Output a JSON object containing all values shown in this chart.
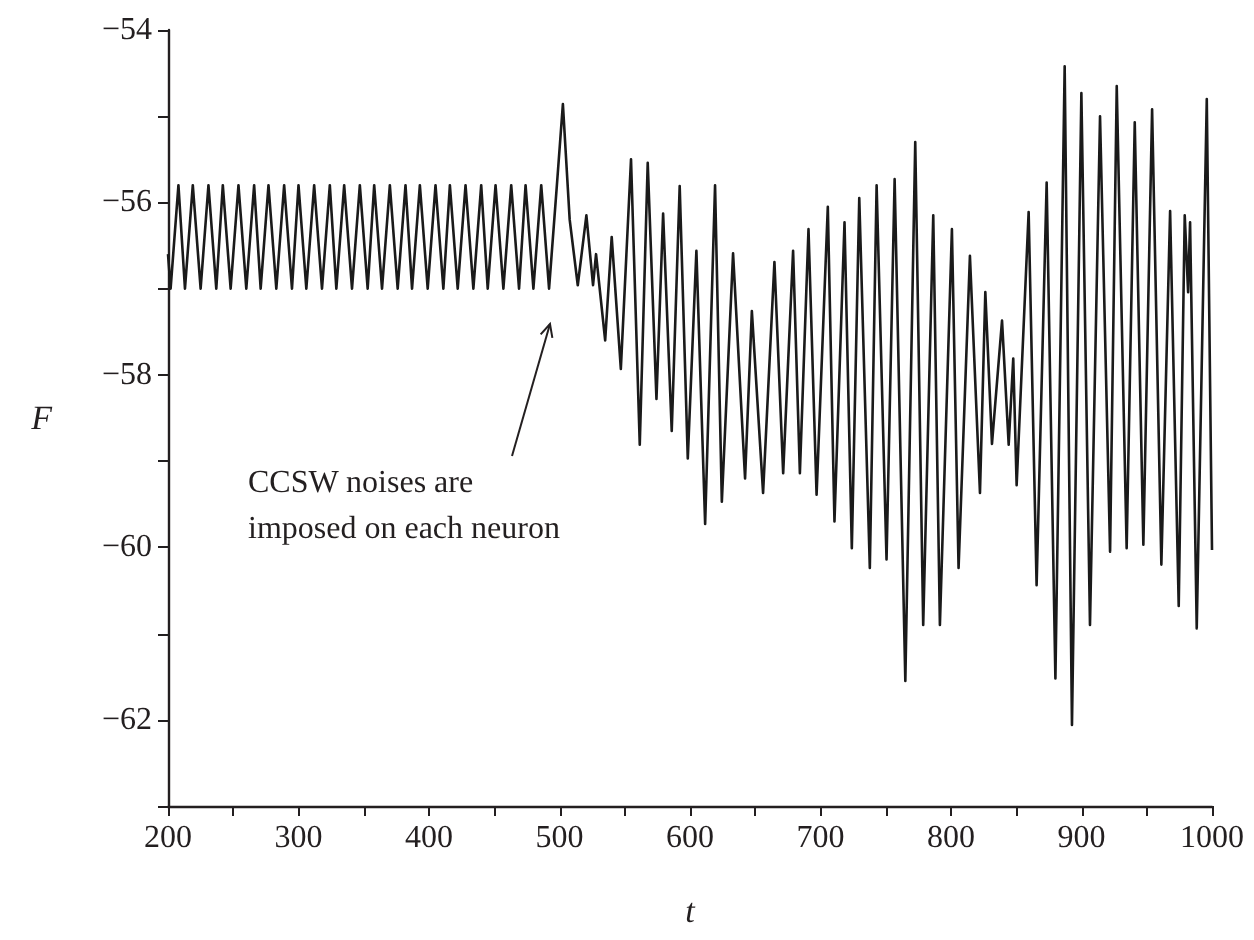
{
  "chart_data": {
    "type": "line",
    "xlabel": "t",
    "ylabel": "F",
    "xlim": [
      200,
      1000
    ],
    "ylim": [
      -63,
      -54
    ],
    "xticks": [
      200,
      {
        "value": 250,
        "label": null
      },
      300,
      {
        "value": 350,
        "label": null
      },
      400,
      {
        "value": 450,
        "label": null
      },
      500,
      {
        "value": 550,
        "label": null
      },
      600,
      {
        "value": 650,
        "label": null
      },
      700,
      {
        "value": 750,
        "label": null
      },
      800,
      {
        "value": 850,
        "label": null
      },
      900,
      {
        "value": 950,
        "label": null
      },
      1000
    ],
    "yticks": [
      {
        "value": -63,
        "label": null
      },
      -62,
      {
        "value": -61,
        "label": null
      },
      -60,
      {
        "value": -59,
        "label": null
      },
      -58,
      {
        "value": -57,
        "label": null
      },
      -56,
      {
        "value": -55,
        "label": null
      },
      -54
    ],
    "grid": false,
    "marker": "none",
    "line_style": "solid",
    "annotations": [
      "CCSW noises are\nimposed on each neuron"
    ],
    "series": [
      {
        "color": "#1a1a1a",
        "x": [
          200,
          202,
          208,
          213,
          219,
          225,
          231,
          237,
          242,
          248,
          254,
          260,
          266,
          271,
          277,
          283,
          289,
          295,
          300,
          306,
          312,
          318,
          324,
          329,
          335,
          341,
          347,
          353,
          358,
          364,
          370,
          376,
          382,
          387,
          393,
          399,
          405,
          411,
          416,
          422,
          428,
          434,
          440,
          445,
          451,
          457,
          463,
          469,
          474,
          480,
          486,
          492,
          498,
          502.6,
          507.8,
          514,
          520.6,
          525.7,
          528,
          535,
          540,
          547,
          554.8,
          561.5,
          567.6,
          574.3,
          579.4,
          586,
          592.1,
          598.3,
          604.9,
          611.6,
          619.2,
          624.4,
          633,
          642.2,
          647.4,
          656,
          664.7,
          671.4,
          679,
          684.2,
          690.8,
          697,
          705.6,
          710.7,
          718.4,
          724,
          729.7,
          737.8,
          743,
          750.6,
          756.8,
          765,
          772.6,
          778.7,
          786.4,
          791.5,
          800.7,
          805.8,
          814.5,
          822.2,
          826.3,
          831.4,
          839.1,
          844.2,
          847.7,
          850.3,
          859.5,
          865.6,
          873.3,
          880,
          887.1,
          892.7,
          899.9,
          906.5,
          914.2,
          921.9,
          927,
          934.6,
          940.8,
          947.4,
          954.1,
          961.2,
          967.9,
          974.5,
          979.1,
          981.7,
          983.2,
          988.3,
          996,
          1000
        ],
        "values": [
          -56.6,
          -57,
          -55.8,
          -57,
          -55.8,
          -57,
          -55.8,
          -57,
          -55.8,
          -57,
          -55.8,
          -57,
          -55.8,
          -57,
          -55.8,
          -57,
          -55.8,
          -57,
          -55.8,
          -57,
          -55.8,
          -57,
          -55.8,
          -57,
          -55.8,
          -57,
          -55.8,
          -57,
          -55.8,
          -57,
          -55.8,
          -57,
          -55.8,
          -57,
          -55.8,
          -57,
          -55.8,
          -57,
          -55.8,
          -57,
          -55.8,
          -57,
          -55.8,
          -57,
          -55.8,
          -57,
          -55.8,
          -57,
          -55.8,
          -57,
          -55.8,
          -57,
          -55.8,
          -54.86,
          -56.2,
          -56.96,
          -56.15,
          -56.96,
          -56.6,
          -57.6,
          -56.4,
          -57.93,
          -55.5,
          -58.81,
          -55.54,
          -58.28,
          -56.13,
          -58.65,
          -55.81,
          -58.97,
          -56.56,
          -59.73,
          -55.8,
          -59.47,
          -56.59,
          -59.2,
          -57.26,
          -59.37,
          -56.69,
          -59.14,
          -56.56,
          -59.14,
          -56.31,
          -59.39,
          -56.05,
          -59.7,
          -56.23,
          -60.01,
          -55.95,
          -60.24,
          -55.8,
          -60.14,
          -55.73,
          -61.55,
          -55.3,
          -60.9,
          -56.15,
          -60.9,
          -56.31,
          -60.24,
          -56.62,
          -59.37,
          -57.04,
          -58.8,
          -57.37,
          -58.81,
          -57.81,
          -59.28,
          -56.11,
          -60.44,
          -55.77,
          -61.52,
          -54.42,
          -62.06,
          -54.73,
          -60.9,
          -55,
          -60.05,
          -54.65,
          -60.01,
          -55.07,
          -59.97,
          -54.92,
          -60.2,
          -56.1,
          -60.68,
          -56.15,
          -57.04,
          -56.23,
          -60.94,
          -54.8,
          -60.03
        ]
      }
    ]
  }
}
